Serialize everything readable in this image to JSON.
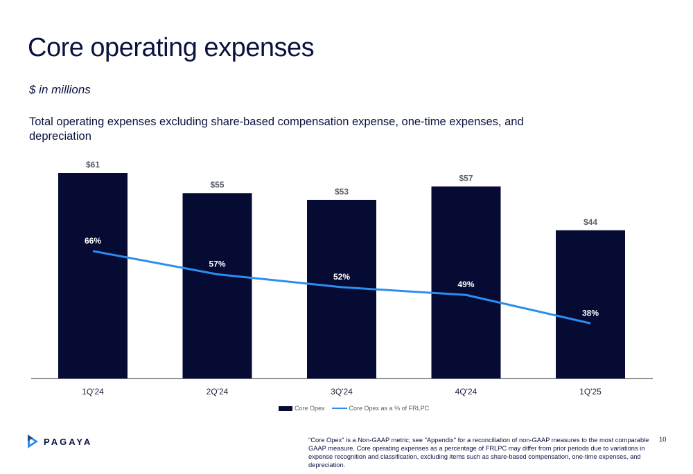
{
  "page": {
    "title": "Core operating expenses",
    "units": "$ in millions",
    "subtitle": "Total operating expenses excluding share-based compensation expense, one-time expenses, and depreciation",
    "footnote": "\"Core Opex\" is a Non-GAAP metric; see \"Appendix\" for a reconciliation of non-GAAP measures to the most comparable GAAP measure. Core operating expenses as a percentage of FRLPC may differ from prior periods due to variations in expense recognition and classification, excluding items such as share-based compensation, one-time expenses, and depreciation.",
    "page_number": "10",
    "logo_text": "PAGAYA",
    "logo_icon": "pagaya-play-icon"
  },
  "chart_data": {
    "type": "bar",
    "categories": [
      "1Q'24",
      "2Q'24",
      "3Q'24",
      "4Q'24",
      "1Q'25"
    ],
    "series": [
      {
        "name": "Core Opex",
        "type": "bar",
        "values": [
          61,
          55,
          53,
          57,
          44
        ],
        "labels": [
          "$61",
          "$55",
          "$53",
          "$57",
          "$44"
        ],
        "color": "#050b33"
      },
      {
        "name": "Core Opex as a % of FRLPC",
        "type": "line",
        "values": [
          66,
          57,
          52,
          49,
          38
        ],
        "labels": [
          "66%",
          "57%",
          "52%",
          "49%",
          "38%"
        ],
        "color": "#2b8ef0"
      }
    ],
    "legend": "bottom-center",
    "grid": false
  }
}
